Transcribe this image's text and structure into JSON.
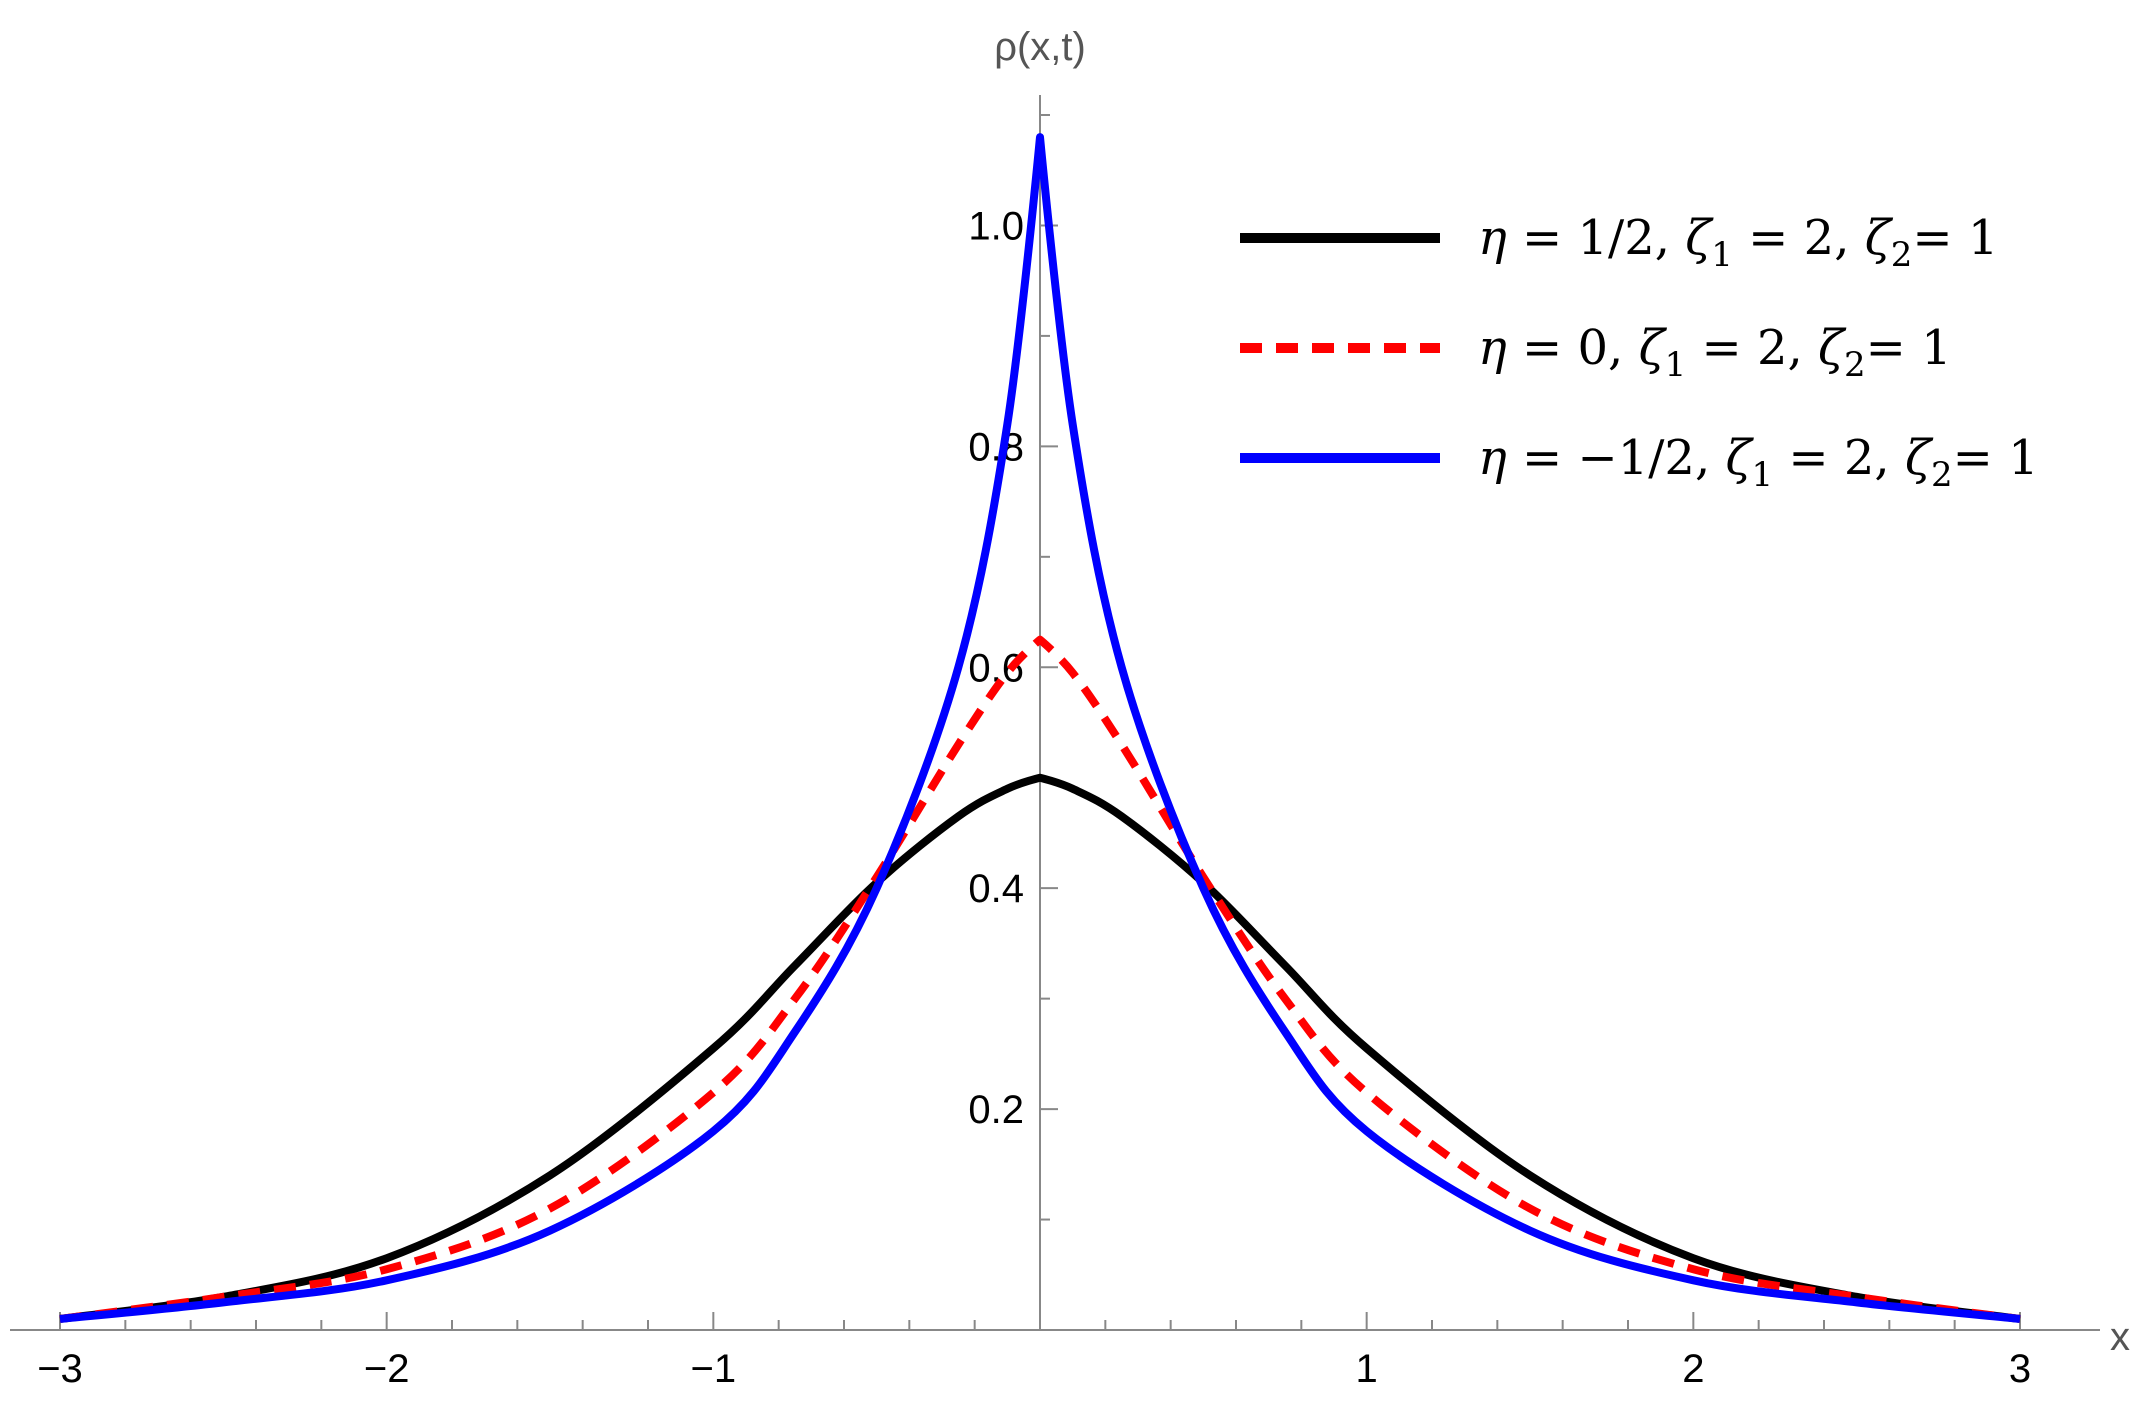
{
  "chart_data": {
    "type": "line",
    "xlabel": "x",
    "ylabel": "ρ(x,t)",
    "xlim": [
      -3,
      3
    ],
    "ylim": [
      0,
      1.1
    ],
    "x_ticks": [
      -3,
      -2,
      -1,
      1,
      2,
      3
    ],
    "x_tick_labels": [
      "−3",
      "−2",
      "−1",
      "1",
      "2",
      "3"
    ],
    "y_ticks": [
      0.2,
      0.4,
      0.6,
      0.8,
      1.0
    ],
    "y_tick_labels": [
      "0.2",
      "0.4",
      "0.6",
      "0.8",
      "1.0"
    ],
    "grid": false,
    "legend_position": "top-right",
    "x": [
      -3.0,
      -2.5,
      -2.0,
      -1.5,
      -1.0,
      -0.75,
      -0.5,
      -0.25,
      -0.1,
      0.0,
      0.1,
      0.25,
      0.5,
      0.75,
      1.0,
      1.5,
      2.0,
      2.5,
      3.0
    ],
    "series": [
      {
        "name": "η = 1/2, ζ1 = 2, ζ2= 1",
        "color": "#000000",
        "dash": "solid",
        "values": [
          0.01,
          0.03,
          0.065,
          0.14,
          0.255,
          0.33,
          0.405,
          0.465,
          0.49,
          0.5,
          0.49,
          0.465,
          0.405,
          0.33,
          0.255,
          0.14,
          0.065,
          0.03,
          0.01
        ]
      },
      {
        "name": "η = 0, ζ1 = 2, ζ2= 1",
        "color": "#ff0000",
        "dash": "dashed",
        "values": [
          0.01,
          0.03,
          0.055,
          0.11,
          0.215,
          0.3,
          0.41,
          0.53,
          0.595,
          0.625,
          0.595,
          0.53,
          0.41,
          0.3,
          0.215,
          0.11,
          0.055,
          0.03,
          0.01
        ]
      },
      {
        "name": "η = −1/2, ζ1 = 2, ζ2= 1",
        "color": "#0000ff",
        "dash": "solid",
        "values": [
          0.01,
          0.025,
          0.045,
          0.09,
          0.18,
          0.27,
          0.4,
          0.6,
          0.82,
          1.08,
          0.82,
          0.6,
          0.4,
          0.27,
          0.18,
          0.09,
          0.045,
          0.025,
          0.01
        ]
      }
    ],
    "legend": [
      {
        "eta": "η",
        "eq1": " = 1/2, ",
        "zeta1": "ζ",
        "sub1": "1",
        "eq2": " = 2, ",
        "zeta2": "ζ",
        "sub2": "2",
        "eq3": "= 1"
      },
      {
        "eta": "η",
        "eq1": " = 0, ",
        "zeta1": "ζ",
        "sub1": "1",
        "eq2": " = 2, ",
        "zeta2": "ζ",
        "sub2": "2",
        "eq3": "= 1"
      },
      {
        "eta": "η",
        "eq1": " = −1/2, ",
        "zeta1": "ζ",
        "sub1": "1",
        "eq2": " = 2, ",
        "zeta2": "ζ",
        "sub2": "2",
        "eq3": "= 1"
      }
    ]
  }
}
